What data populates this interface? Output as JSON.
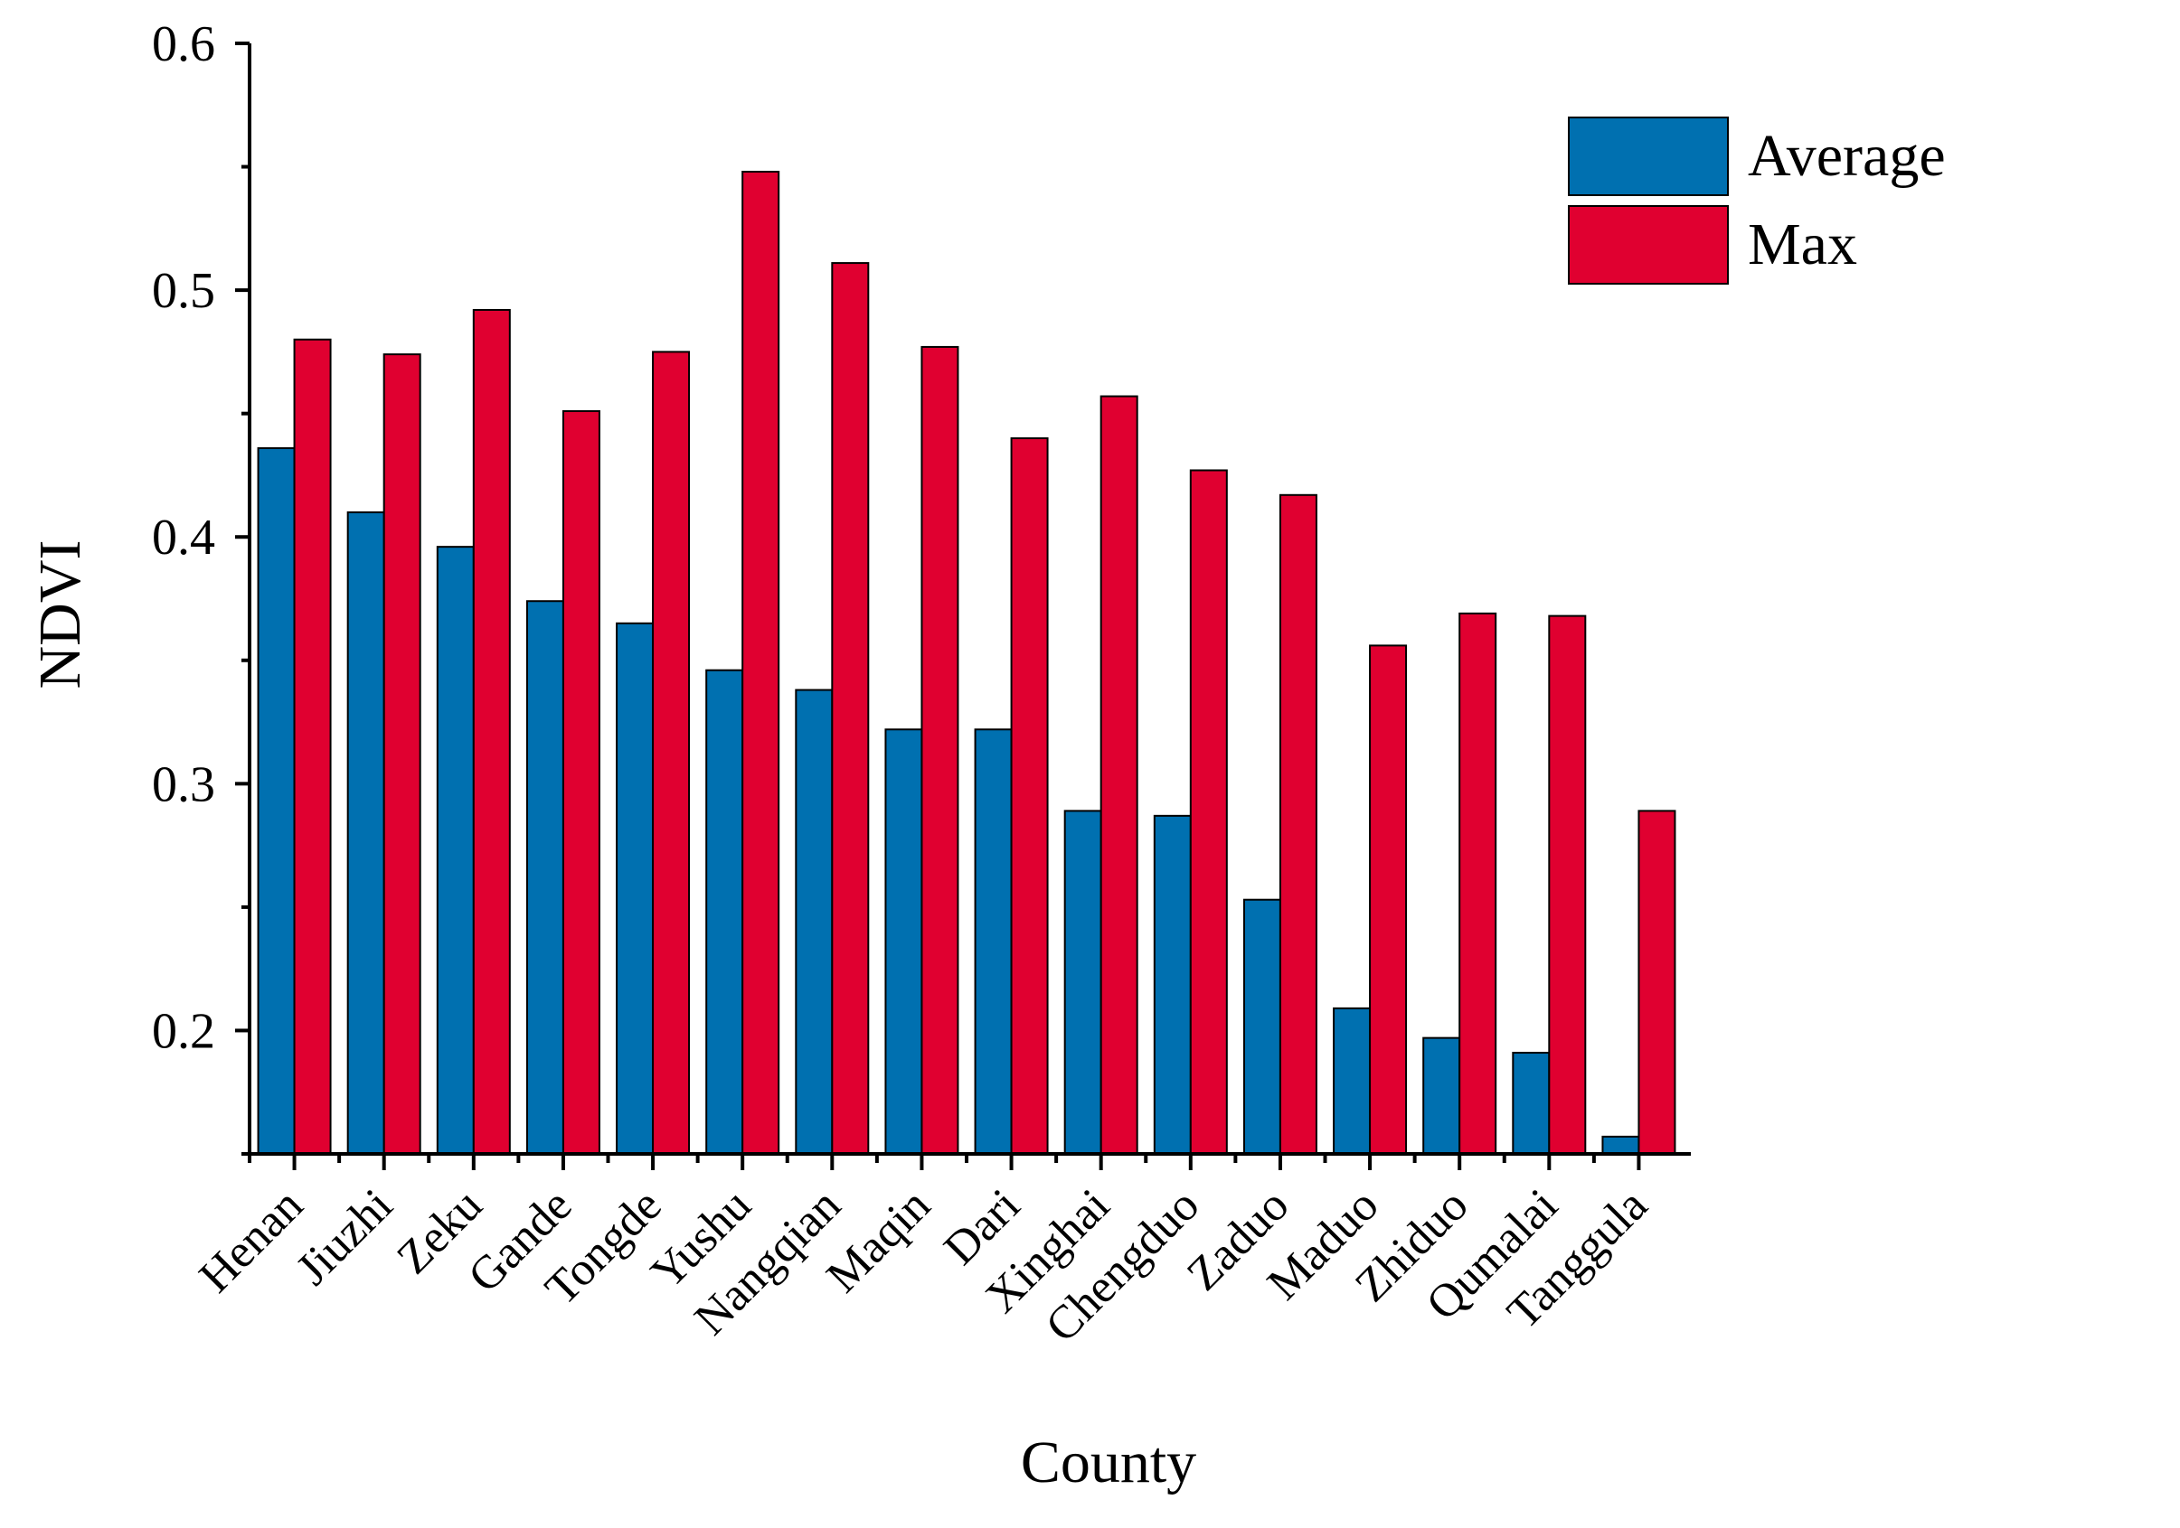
{
  "chart_data": {
    "type": "bar",
    "title": "",
    "xlabel": "County",
    "ylabel": "NDVI",
    "ylim": [
      0.15,
      0.6
    ],
    "yticks": [
      "0.2",
      "0.3",
      "0.4",
      "0.5",
      "0.6"
    ],
    "grid": false,
    "legend_position": "top-right",
    "categories": [
      "Henan",
      "Jiuzhi",
      "Zeku",
      "Gande",
      "Tongde",
      "Yushu",
      "Nangqian",
      "Maqin",
      "Dari",
      "Xinghai",
      "Chengduo",
      "Zaduo",
      "Maduo",
      "Zhiduo",
      "Qumalai",
      "Tanggula"
    ],
    "series": [
      {
        "name": "Average",
        "color": "#0070b0",
        "values": [
          0.436,
          0.41,
          0.396,
          0.374,
          0.365,
          0.346,
          0.338,
          0.322,
          0.322,
          0.289,
          0.287,
          0.253,
          0.209,
          0.197,
          0.191,
          0.157
        ]
      },
      {
        "name": "Max",
        "color": "#e00030",
        "values": [
          0.48,
          0.474,
          0.492,
          0.451,
          0.475,
          0.548,
          0.511,
          0.477,
          0.44,
          0.457,
          0.427,
          0.417,
          0.356,
          0.369,
          0.368,
          0.289
        ]
      }
    ]
  }
}
